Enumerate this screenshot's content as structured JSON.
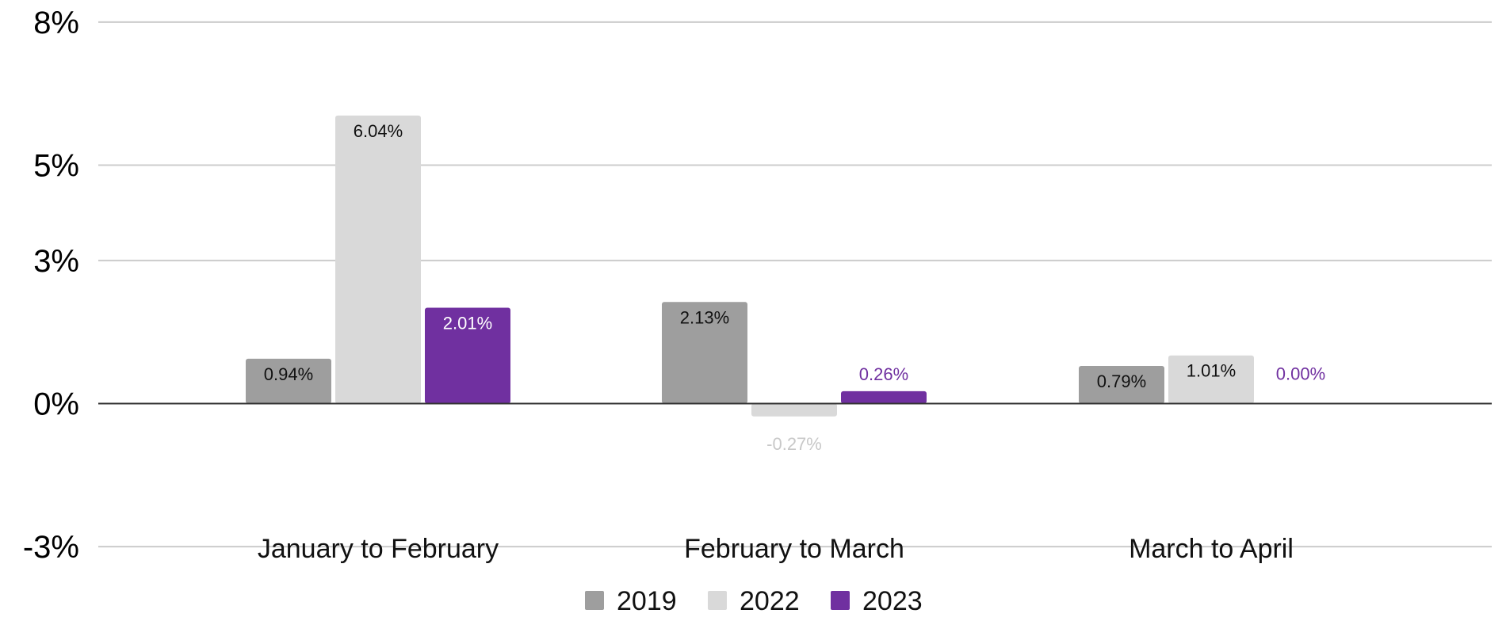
{
  "chart_data": {
    "type": "bar",
    "title": "",
    "xlabel": "",
    "ylabel": "",
    "categories": [
      "January to February",
      "February to March",
      "March to April"
    ],
    "series": [
      {
        "name": "2019",
        "color": "#9e9e9e",
        "values": [
          0.94,
          2.13,
          0.79
        ],
        "labels": [
          "0.94%",
          "2.13%",
          "0.79%"
        ],
        "label_color": "#111111"
      },
      {
        "name": "2022",
        "color": "#d9d9d9",
        "values": [
          6.04,
          -0.27,
          1.01
        ],
        "labels": [
          "6.04%",
          "-0.27%",
          "1.01%"
        ],
        "label_color": "#111111",
        "negative_label_color": "#c8c8c8"
      },
      {
        "name": "2023",
        "color": "#7030a0",
        "values": [
          2.01,
          0.26,
          0.0
        ],
        "labels": [
          "2.01%",
          "0.26%",
          "0.00%"
        ],
        "label_color": "#ffffff",
        "outside_label_color": "#7030a0"
      }
    ],
    "yticks": [
      -3,
      0,
      3,
      5,
      8
    ],
    "ytick_labels": [
      "-3%",
      "0%",
      "3%",
      "5%",
      "8%"
    ],
    "ylim": [
      -2.5,
      7.5
    ],
    "grid": true,
    "legend_position": "bottom"
  }
}
